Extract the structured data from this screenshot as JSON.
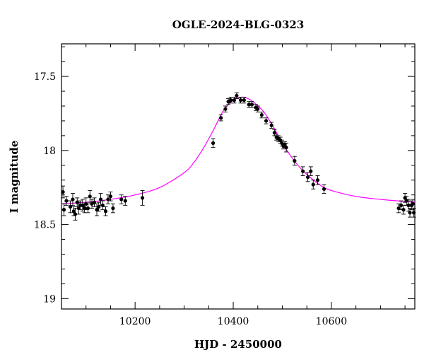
{
  "chart_data": {
    "type": "scatter",
    "title": "OGLE-2024-BLG-0323",
    "xlabel": "HJD - 2450000",
    "ylabel": "I magnitude",
    "xlim": [
      10050,
      10770
    ],
    "ylim": [
      19.07,
      17.28
    ],
    "y_inverted": true,
    "grid": false,
    "legend": "none",
    "x_ticks": [
      {
        "value": 10200,
        "label": "10200"
      },
      {
        "value": 10400,
        "label": "10400"
      },
      {
        "value": 10600,
        "label": "10600"
      }
    ],
    "y_ticks": [
      {
        "value": 17.5,
        "label": "17.5"
      },
      {
        "value": 18,
        "label": "18"
      },
      {
        "value": 18.5,
        "label": "18.5"
      },
      {
        "value": 19,
        "label": "19"
      }
    ],
    "colors": {
      "points": "#000000",
      "model": "#ff00ff",
      "axes": "#000000"
    },
    "model_curve": {
      "x": [
        10050,
        10100,
        10150,
        10200,
        10250,
        10300,
        10320,
        10340,
        10360,
        10380,
        10400,
        10410,
        10420,
        10430,
        10440,
        10460,
        10480,
        10500,
        10520,
        10540,
        10560,
        10580,
        10600,
        10650,
        10700,
        10770
      ],
      "y": [
        18.36,
        18.35,
        18.33,
        18.3,
        18.25,
        18.15,
        18.08,
        17.98,
        17.86,
        17.73,
        17.66,
        17.645,
        17.64,
        17.65,
        17.67,
        17.73,
        17.83,
        17.95,
        18.05,
        18.13,
        18.19,
        18.24,
        18.27,
        18.31,
        18.33,
        18.35
      ]
    },
    "observations": [
      {
        "x": 10053,
        "y": 18.28,
        "err": 0.04
      },
      {
        "x": 10055,
        "y": 18.4,
        "err": 0.04
      },
      {
        "x": 10060,
        "y": 18.34,
        "err": 0.03
      },
      {
        "x": 10068,
        "y": 18.38,
        "err": 0.04
      },
      {
        "x": 10073,
        "y": 18.33,
        "err": 0.04
      },
      {
        "x": 10075,
        "y": 18.41,
        "err": 0.03
      },
      {
        "x": 10078,
        "y": 18.43,
        "err": 0.04
      },
      {
        "x": 10082,
        "y": 18.35,
        "err": 0.03
      },
      {
        "x": 10085,
        "y": 18.39,
        "err": 0.04
      },
      {
        "x": 10088,
        "y": 18.37,
        "err": 0.03
      },
      {
        "x": 10093,
        "y": 18.37,
        "err": 0.04
      },
      {
        "x": 10097,
        "y": 18.39,
        "err": 0.03
      },
      {
        "x": 10100,
        "y": 18.36,
        "err": 0.04
      },
      {
        "x": 10104,
        "y": 18.39,
        "err": 0.03
      },
      {
        "x": 10108,
        "y": 18.31,
        "err": 0.04
      },
      {
        "x": 10112,
        "y": 18.36,
        "err": 0.03
      },
      {
        "x": 10117,
        "y": 18.35,
        "err": 0.03
      },
      {
        "x": 10122,
        "y": 18.4,
        "err": 0.04
      },
      {
        "x": 10126,
        "y": 18.38,
        "err": 0.03
      },
      {
        "x": 10130,
        "y": 18.33,
        "err": 0.04
      },
      {
        "x": 10134,
        "y": 18.37,
        "err": 0.03
      },
      {
        "x": 10140,
        "y": 18.41,
        "err": 0.03
      },
      {
        "x": 10145,
        "y": 18.33,
        "err": 0.03
      },
      {
        "x": 10150,
        "y": 18.31,
        "err": 0.03
      },
      {
        "x": 10155,
        "y": 18.39,
        "err": 0.03
      },
      {
        "x": 10172,
        "y": 18.33,
        "err": 0.03
      },
      {
        "x": 10180,
        "y": 18.34,
        "err": 0.03
      },
      {
        "x": 10215,
        "y": 18.32,
        "err": 0.05
      },
      {
        "x": 10359,
        "y": 17.95,
        "err": 0.03
      },
      {
        "x": 10375,
        "y": 17.78,
        "err": 0.02
      },
      {
        "x": 10384,
        "y": 17.72,
        "err": 0.02
      },
      {
        "x": 10390,
        "y": 17.67,
        "err": 0.02
      },
      {
        "x": 10395,
        "y": 17.66,
        "err": 0.02
      },
      {
        "x": 10402,
        "y": 17.66,
        "err": 0.02
      },
      {
        "x": 10407,
        "y": 17.63,
        "err": 0.02
      },
      {
        "x": 10415,
        "y": 17.66,
        "err": 0.02
      },
      {
        "x": 10422,
        "y": 17.66,
        "err": 0.02
      },
      {
        "x": 10432,
        "y": 17.69,
        "err": 0.02
      },
      {
        "x": 10438,
        "y": 17.69,
        "err": 0.02
      },
      {
        "x": 10446,
        "y": 17.71,
        "err": 0.02
      },
      {
        "x": 10450,
        "y": 17.72,
        "err": 0.02
      },
      {
        "x": 10458,
        "y": 17.76,
        "err": 0.02
      },
      {
        "x": 10467,
        "y": 17.8,
        "err": 0.02
      },
      {
        "x": 10478,
        "y": 17.83,
        "err": 0.02
      },
      {
        "x": 10484,
        "y": 17.88,
        "err": 0.02
      },
      {
        "x": 10488,
        "y": 17.91,
        "err": 0.02
      },
      {
        "x": 10492,
        "y": 17.92,
        "err": 0.02
      },
      {
        "x": 10496,
        "y": 17.93,
        "err": 0.02
      },
      {
        "x": 10499,
        "y": 17.95,
        "err": 0.02
      },
      {
        "x": 10502,
        "y": 17.97,
        "err": 0.02
      },
      {
        "x": 10505,
        "y": 17.96,
        "err": 0.02
      },
      {
        "x": 10508,
        "y": 17.98,
        "err": 0.03
      },
      {
        "x": 10525,
        "y": 18.07,
        "err": 0.03
      },
      {
        "x": 10542,
        "y": 18.14,
        "err": 0.03
      },
      {
        "x": 10552,
        "y": 18.18,
        "err": 0.03
      },
      {
        "x": 10558,
        "y": 18.14,
        "err": 0.03
      },
      {
        "x": 10563,
        "y": 18.23,
        "err": 0.03
      },
      {
        "x": 10572,
        "y": 18.2,
        "err": 0.03
      },
      {
        "x": 10585,
        "y": 18.26,
        "err": 0.03
      },
      {
        "x": 10737,
        "y": 18.39,
        "err": 0.03
      },
      {
        "x": 10742,
        "y": 18.37,
        "err": 0.03
      },
      {
        "x": 10747,
        "y": 18.4,
        "err": 0.03
      },
      {
        "x": 10750,
        "y": 18.32,
        "err": 0.03
      },
      {
        "x": 10753,
        "y": 18.34,
        "err": 0.03
      },
      {
        "x": 10757,
        "y": 18.37,
        "err": 0.04
      },
      {
        "x": 10760,
        "y": 18.42,
        "err": 0.03
      },
      {
        "x": 10763,
        "y": 18.37,
        "err": 0.03
      },
      {
        "x": 10766,
        "y": 18.36,
        "err": 0.03
      },
      {
        "x": 10768,
        "y": 18.42,
        "err": 0.03
      }
    ]
  }
}
